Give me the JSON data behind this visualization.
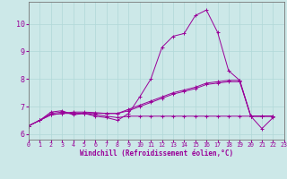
{
  "background_color": "#cce8e8",
  "line_color": "#990099",
  "marker": "+",
  "xlabel": "Windchill (Refroidissement éolien,°C)",
  "xlim": [
    0,
    23
  ],
  "ylim": [
    5.8,
    10.8
  ],
  "yticks": [
    6,
    7,
    8,
    9,
    10
  ],
  "xticks": [
    0,
    1,
    2,
    3,
    4,
    5,
    6,
    7,
    8,
    9,
    10,
    11,
    12,
    13,
    14,
    15,
    16,
    17,
    18,
    19,
    20,
    21,
    22,
    23
  ],
  "series": [
    [
      6.3,
      6.5,
      6.8,
      6.85,
      6.7,
      6.75,
      6.65,
      6.6,
      6.5,
      6.75,
      7.35,
      8.0,
      9.15,
      9.55,
      9.65,
      10.3,
      10.5,
      9.7,
      8.3,
      7.95,
      6.65,
      6.2,
      6.6
    ],
    [
      6.3,
      6.5,
      6.75,
      6.8,
      6.75,
      6.75,
      6.7,
      6.65,
      6.6,
      6.65,
      6.65,
      6.65,
      6.65,
      6.65,
      6.65,
      6.65,
      6.65,
      6.65,
      6.65,
      6.65,
      6.65,
      6.65,
      6.65
    ],
    [
      6.3,
      6.5,
      6.7,
      6.75,
      6.75,
      6.75,
      6.75,
      6.75,
      6.75,
      6.9,
      7.05,
      7.2,
      7.35,
      7.5,
      7.6,
      7.7,
      7.85,
      7.9,
      7.95,
      7.95,
      6.65,
      6.65,
      6.65
    ],
    [
      6.3,
      6.5,
      6.7,
      6.75,
      6.8,
      6.8,
      6.78,
      6.75,
      6.75,
      6.85,
      7.0,
      7.15,
      7.3,
      7.45,
      7.55,
      7.65,
      7.8,
      7.85,
      7.9,
      7.9,
      6.65,
      6.65,
      6.65
    ]
  ],
  "grid_color": "#b0d8d8",
  "spine_color": "#777777",
  "tick_label_color": "#990099",
  "xlabel_fontsize": 5.5,
  "ytick_fontsize": 6,
  "xtick_fontsize": 4.8
}
